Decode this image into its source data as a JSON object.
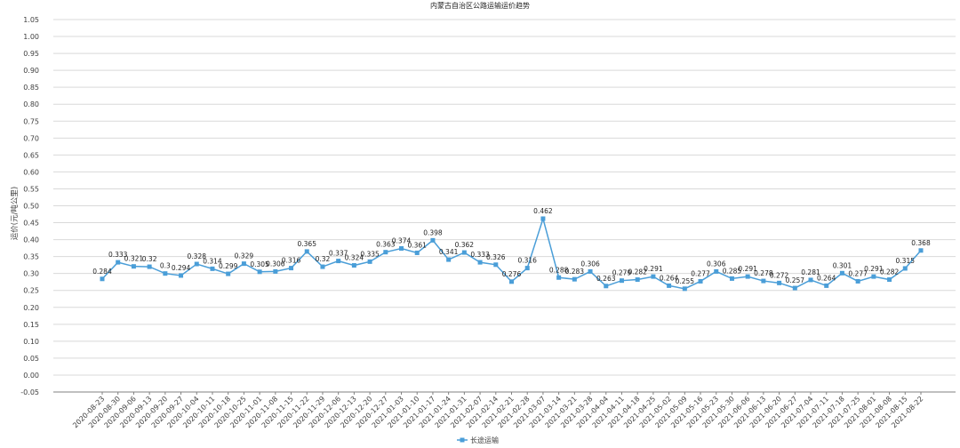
{
  "chart_data": {
    "type": "line",
    "title": "内蒙古自治区公路运输运价趋势",
    "xlabel": "",
    "ylabel": "运价(元/吨公里)",
    "ylim": [
      -0.05,
      1.05
    ],
    "yticks": [
      1.05,
      1.0,
      0.95,
      0.9,
      0.85,
      0.8,
      0.75,
      0.7,
      0.65,
      0.6,
      0.55,
      0.5,
      0.45,
      0.4,
      0.35,
      0.3,
      0.25,
      0.2,
      0.15,
      0.1,
      0.05,
      0.0,
      -0.05
    ],
    "grid": true,
    "legend": "bottom",
    "colors": {
      "series": "#4a9ed8"
    },
    "x": [
      "2020-08-23",
      "2020-08-30",
      "2020-09-06",
      "2020-09-13",
      "2020-09-20",
      "2020-09-27",
      "2020-10-04",
      "2020-10-11",
      "2020-10-18",
      "2020-10-25",
      "2020-11-01",
      "2020-11-08",
      "2020-11-15",
      "2020-11-22",
      "2020-11-29",
      "2020-12-06",
      "2020-12-13",
      "2020-12-20",
      "2020-12-27",
      "2021-01-03",
      "2021-01-10",
      "2021-01-17",
      "2021-01-24",
      "2021-01-31",
      "2021-02-07",
      "2021-02-14",
      "2021-02-21",
      "2021-02-28",
      "2021-03-07",
      "2021-03-14",
      "2021-03-21",
      "2021-03-28",
      "2021-04-04",
      "2021-04-11",
      "2021-04-18",
      "2021-04-25",
      "2021-05-02",
      "2021-05-09",
      "2021-05-16",
      "2021-05-23",
      "2021-05-30",
      "2021-06-06",
      "2021-06-13",
      "2021-06-20",
      "2021-06-27",
      "2021-07-04",
      "2021-07-11",
      "2021-07-18",
      "2021-07-25",
      "2021-08-01",
      "2021-08-08",
      "2021-08-15",
      "2021-08-22"
    ],
    "series": [
      {
        "name": "长途运输",
        "values": [
          0.284,
          0.333,
          0.321,
          0.32,
          0.3,
          0.294,
          0.328,
          0.314,
          0.299,
          0.329,
          0.305,
          0.306,
          0.316,
          0.365,
          0.32,
          0.337,
          0.324,
          0.335,
          0.363,
          0.374,
          0.361,
          0.398,
          0.341,
          0.362,
          0.333,
          0.326,
          0.276,
          0.316,
          0.462,
          0.288,
          0.283,
          0.306,
          0.263,
          0.279,
          0.282,
          0.291,
          0.264,
          0.255,
          0.277,
          0.306,
          0.285,
          0.291,
          0.278,
          0.272,
          0.257,
          0.281,
          0.264,
          0.301,
          0.277,
          0.291,
          0.282,
          0.315,
          0.368
        ],
        "labels": [
          "0.284",
          "0.333",
          "0.321",
          "0.32",
          "0.3",
          "0.294",
          "0.328",
          "0.314",
          "0.299",
          "0.329",
          "0.305",
          "0.306",
          "0.316",
          "0.365",
          "0.32",
          "0.337",
          "0.324",
          "0.335",
          "0.363",
          "0.374",
          "0.361",
          "0.398",
          "0.341",
          "0.362",
          "0.333",
          "0.326",
          "0.276",
          "0.316",
          "0.462",
          "0.288",
          "0.283",
          "0.306",
          "0.263",
          "0.279",
          "0.282",
          "0.291",
          "0.264",
          "0.255",
          "0.277",
          "0.306",
          "0.285",
          "0.291",
          "0.278",
          "0.272",
          "0.257",
          "0.281",
          "0.264",
          "0.301",
          "0.277",
          "0.291",
          "0.282",
          "0.315",
          "0.368"
        ]
      }
    ]
  }
}
